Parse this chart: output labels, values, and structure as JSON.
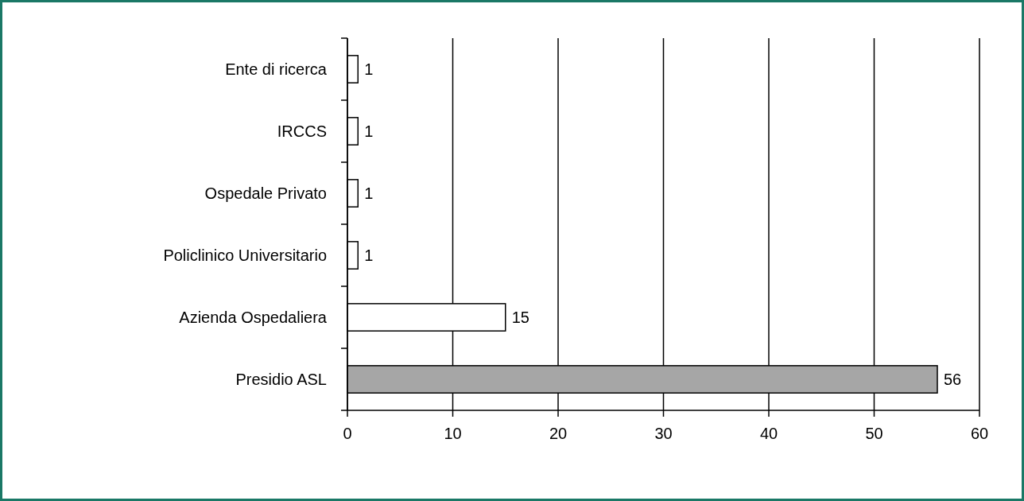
{
  "chart_data": {
    "type": "bar",
    "orientation": "horizontal",
    "categories": [
      "Ente di ricerca",
      "IRCCS",
      "Ospedale Privato",
      "Policlinico Universitario",
      "Azienda Ospedaliera",
      "Presidio ASL"
    ],
    "values": [
      1,
      1,
      1,
      1,
      15,
      56
    ],
    "colors": [
      "#ffffff",
      "#ffffff",
      "#ffffff",
      "#ffffff",
      "#ffffff",
      "#a6a6a6"
    ],
    "xlim": [
      0,
      60
    ],
    "xticks": [
      0,
      10,
      20,
      30,
      40,
      50,
      60
    ],
    "grid": "x",
    "data_labels": true
  }
}
